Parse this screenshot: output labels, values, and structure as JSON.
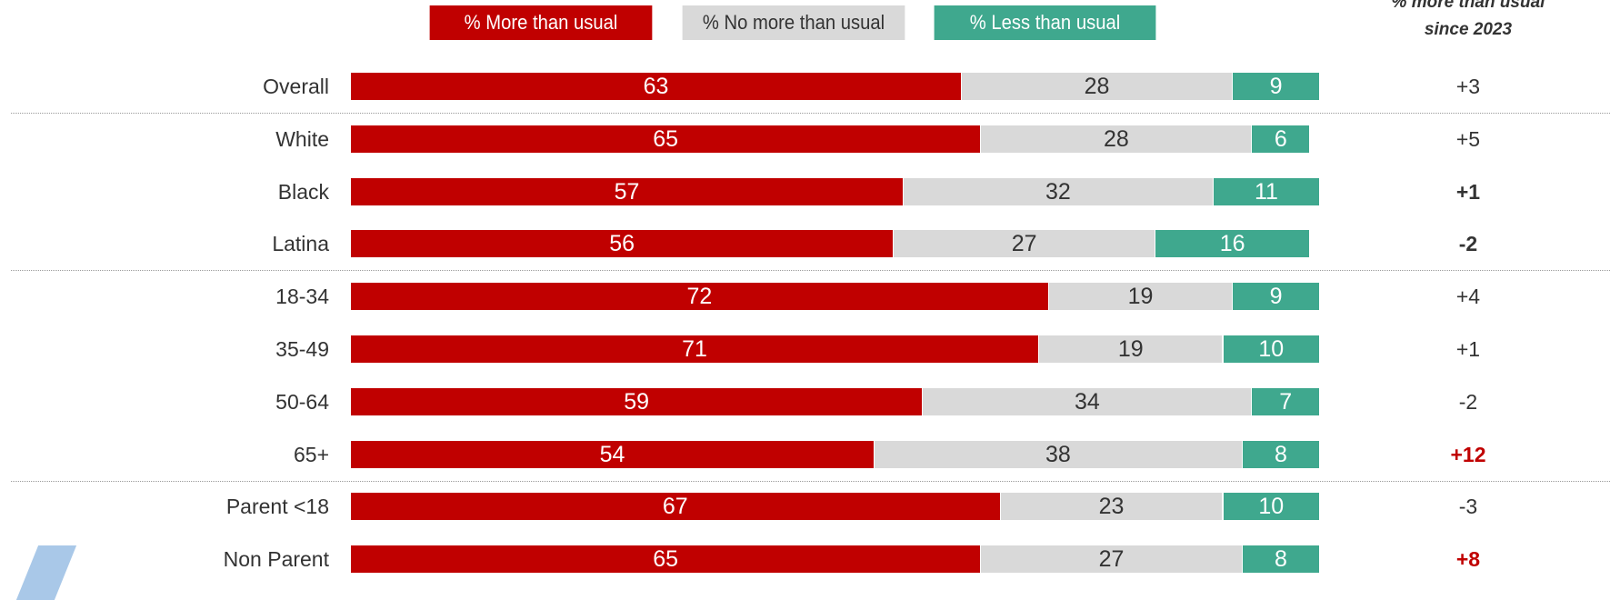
{
  "legend": {
    "more": "% More than usual",
    "no_more": "% No more than usual",
    "less": "% Less than usual"
  },
  "change_header": {
    "line1": "% more than usual",
    "line2": "since 2023"
  },
  "colors": {
    "more": "#c00000",
    "no_more": "#d9d9d9",
    "less": "#3fa88e",
    "change_highlight": "#c00000"
  },
  "chart_data": {
    "type": "bar",
    "orientation": "horizontal",
    "stacked": true,
    "xlim": [
      0,
      100
    ],
    "categories": [
      "Overall",
      "White",
      "Black",
      "Latina",
      "18-34",
      "35-49",
      "50-64",
      "65+",
      "Parent <18",
      "Non Parent"
    ],
    "series": [
      {
        "name": "% More than usual",
        "values": [
          63,
          65,
          57,
          56,
          72,
          71,
          59,
          54,
          67,
          65
        ]
      },
      {
        "name": "% No more than usual",
        "values": [
          28,
          28,
          32,
          27,
          19,
          19,
          34,
          38,
          23,
          27
        ]
      },
      {
        "name": "% Less than usual",
        "values": [
          9,
          6,
          11,
          16,
          9,
          10,
          7,
          8,
          10,
          8
        ]
      }
    ],
    "change_since_2023": [
      "+3",
      "+5",
      "+1",
      "-2",
      "+4",
      "+1",
      "-2",
      "+12",
      "-3",
      "+8"
    ],
    "change_style": [
      "normal",
      "normal",
      "bold",
      "bold",
      "normal",
      "normal",
      "normal",
      "highlight",
      "normal",
      "highlight"
    ],
    "group_breaks_after": [
      "Overall",
      "Latina",
      "65+"
    ]
  }
}
